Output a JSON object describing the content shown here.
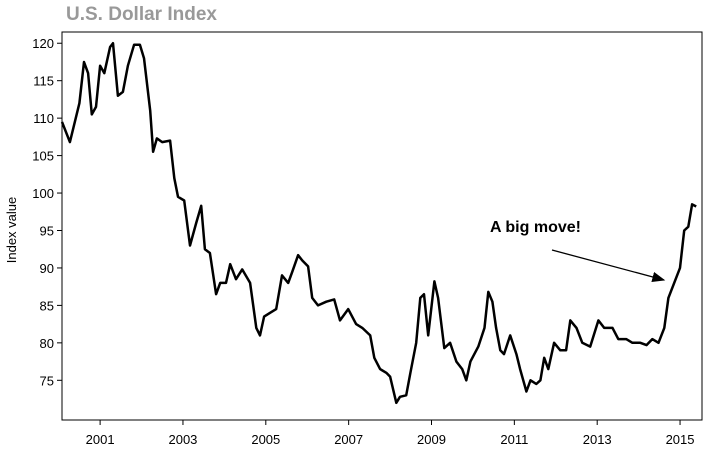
{
  "chart_data": {
    "type": "line",
    "title": "U.S. Dollar Index",
    "y_label": "Index value",
    "annotation": "A big move!",
    "xlim": [
      2000.08,
      2015.53
    ],
    "xticks": [
      2001,
      2003,
      2005,
      2007,
      2009,
      2011,
      2013,
      2015
    ],
    "ylim": [
      69.7,
      121.5
    ],
    "yticks": [
      75,
      80,
      85,
      90,
      95,
      100,
      105,
      110,
      115,
      120
    ],
    "color": "#000000",
    "x": [
      2000.08,
      2000.27,
      2000.5,
      2000.61,
      2000.71,
      2000.8,
      2000.9,
      2001.0,
      2001.1,
      2001.24,
      2001.31,
      2001.43,
      2001.55,
      2001.67,
      2001.82,
      2001.96,
      2002.06,
      2002.21,
      2002.28,
      2002.37,
      2002.5,
      2002.69,
      2002.79,
      2002.88,
      2003.03,
      2003.17,
      2003.32,
      2003.44,
      2003.53,
      2003.65,
      2003.8,
      2003.9,
      2004.04,
      2004.14,
      2004.28,
      2004.43,
      2004.62,
      2004.77,
      2004.86,
      2004.96,
      2005.1,
      2005.25,
      2005.39,
      2005.54,
      2005.64,
      2005.78,
      2005.88,
      2006.02,
      2006.12,
      2006.26,
      2006.46,
      2006.65,
      2006.79,
      2006.99,
      2007.18,
      2007.33,
      2007.52,
      2007.62,
      2007.76,
      2007.91,
      2008.0,
      2008.15,
      2008.24,
      2008.39,
      2008.49,
      2008.63,
      2008.73,
      2008.82,
      2008.92,
      2009.07,
      2009.16,
      2009.31,
      2009.45,
      2009.6,
      2009.74,
      2009.84,
      2009.94,
      2010.13,
      2010.28,
      2010.37,
      2010.47,
      2010.56,
      2010.66,
      2010.75,
      2010.9,
      2011.05,
      2011.14,
      2011.29,
      2011.39,
      2011.53,
      2011.63,
      2011.72,
      2011.82,
      2011.96,
      2012.11,
      2012.25,
      2012.35,
      2012.5,
      2012.64,
      2012.83,
      2013.03,
      2013.17,
      2013.37,
      2013.51,
      2013.7,
      2013.85,
      2014.04,
      2014.19,
      2014.33,
      2014.48,
      2014.62,
      2014.72,
      2014.86,
      2015.0,
      2015.1,
      2015.2,
      2015.29,
      2015.39
    ],
    "values": [
      109.5,
      106.8,
      112,
      117.5,
      116,
      110.5,
      111.5,
      117,
      116,
      119.5,
      120,
      113,
      113.5,
      117,
      119.8,
      119.8,
      118,
      111,
      105.5,
      107.3,
      106.8,
      107,
      102,
      99.5,
      99,
      93,
      96,
      98.3,
      92.5,
      92,
      86.5,
      88,
      88,
      90.5,
      88.5,
      89.8,
      88,
      82,
      81,
      83.5,
      84,
      84.5,
      89,
      88,
      89.5,
      91.7,
      91,
      90.2,
      86,
      85,
      85.5,
      85.8,
      83,
      84.5,
      82.5,
      82,
      81,
      78,
      76.5,
      76,
      75.5,
      72,
      72.8,
      73,
      76,
      80,
      86,
      86.5,
      81,
      88.2,
      86,
      79.3,
      80,
      77.5,
      76.5,
      75,
      77.5,
      79.5,
      82,
      86.8,
      85.5,
      82,
      79,
      78.5,
      81,
      78.5,
      76.5,
      73.5,
      75,
      74.5,
      75,
      78,
      76.5,
      80,
      79,
      79,
      83,
      82,
      80,
      79.5,
      83,
      82,
      82,
      80.5,
      80.5,
      80,
      80,
      79.7,
      80.5,
      80,
      82,
      86,
      88,
      90,
      95,
      95.5,
      98.5,
      98.2
    ]
  }
}
